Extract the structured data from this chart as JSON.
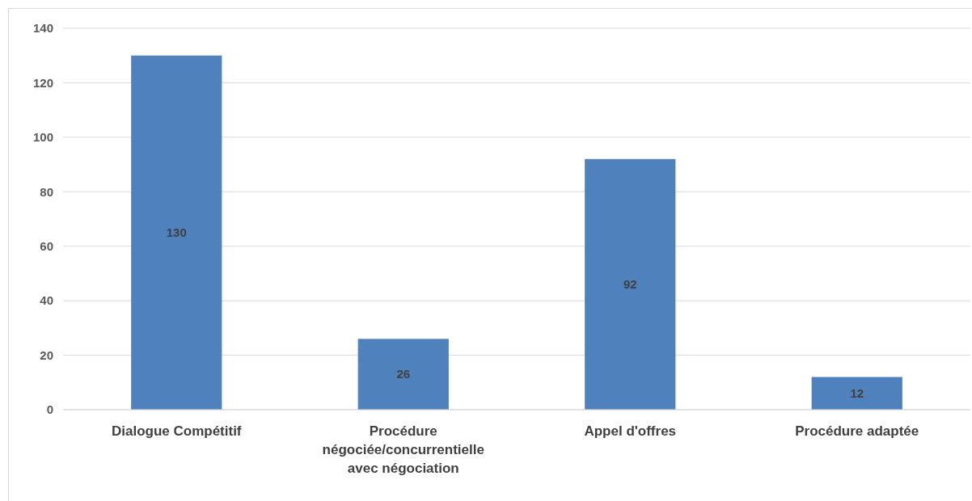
{
  "chart_data": {
    "type": "bar",
    "categories": [
      "Dialogue Compétitif",
      "Procédure négociée/concurrentielle avec négociation",
      "Appel d'offres",
      "Procédure adaptée"
    ],
    "values": [
      130,
      26,
      92,
      12
    ],
    "color": "#4f81bd",
    "ylim": [
      0,
      140
    ],
    "yticks": [
      0,
      20,
      40,
      60,
      80,
      100,
      120,
      140
    ],
    "grid": "y",
    "data_labels": true
  }
}
